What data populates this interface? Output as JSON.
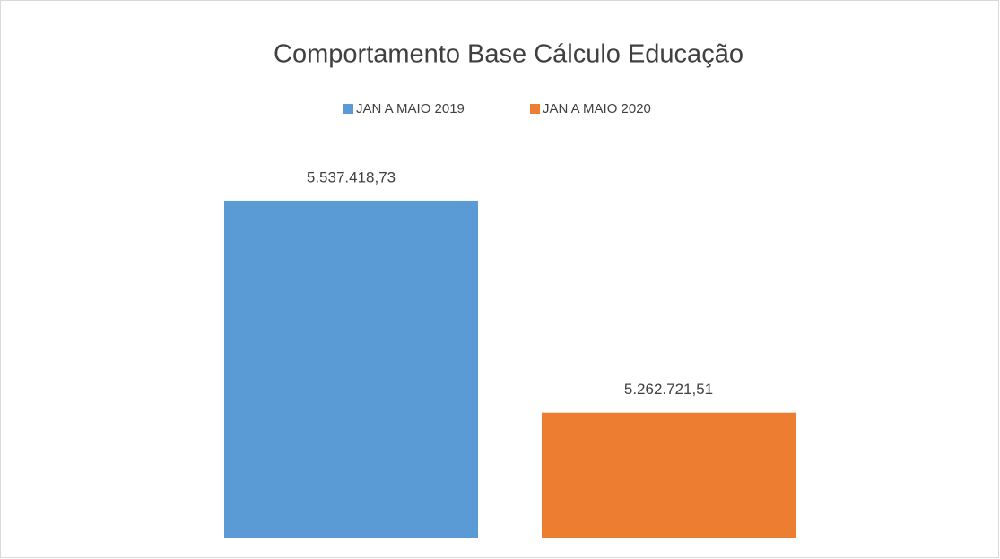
{
  "chart_data": {
    "type": "bar",
    "title": "Comportamento Base Cálculo Educação",
    "series": [
      {
        "name": "JAN A MAIO 2019",
        "color": "#5b9bd5",
        "values": [
          5537418.73
        ],
        "value_labels": [
          "5.537.418,73"
        ]
      },
      {
        "name": "JAN A MAIO 2020",
        "color": "#ed7d31",
        "values": [
          5262721.51
        ],
        "value_labels": [
          "5.262.721,51"
        ]
      }
    ],
    "ylim": [
      5100000,
      5600000
    ],
    "grid": false,
    "legend": "top"
  }
}
